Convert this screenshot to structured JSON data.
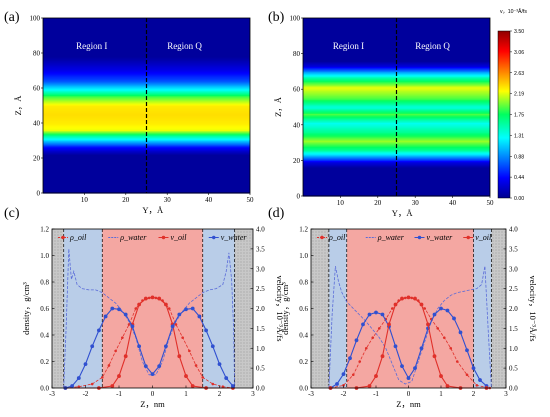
{
  "chart_data": [
    {
      "id": "a",
      "type": "heatmap",
      "panel_label": "(a)",
      "xlabel": "Y，Å",
      "ylabel": "Z，Å",
      "x_ticks": [
        "10",
        "20",
        "30",
        "40",
        "50"
      ],
      "y_ticks": [
        "0",
        "20",
        "40",
        "60",
        "80",
        "100"
      ],
      "xlim": [
        0,
        50
      ],
      "ylim": [
        0,
        100
      ],
      "regions": [
        "Region I",
        "Region Q"
      ],
      "divider_x": 25,
      "profile": [
        {
          "z": 0,
          "v": 0.05
        },
        {
          "z": 22,
          "v": 0.05
        },
        {
          "z": 26,
          "v": 0.4
        },
        {
          "z": 30,
          "v": 1.1
        },
        {
          "z": 33,
          "v": 1.6
        },
        {
          "z": 36,
          "v": 2.2
        },
        {
          "z": 40,
          "v": 2.3
        },
        {
          "z": 45,
          "v": 2.35
        },
        {
          "z": 50,
          "v": 2.3
        },
        {
          "z": 55,
          "v": 1.9
        },
        {
          "z": 59,
          "v": 1.3
        },
        {
          "z": 64,
          "v": 0.7
        },
        {
          "z": 70,
          "v": 0.35
        },
        {
          "z": 76,
          "v": 0.12
        },
        {
          "z": 78,
          "v": 0.05
        },
        {
          "z": 100,
          "v": 0.05
        }
      ]
    },
    {
      "id": "b",
      "type": "heatmap",
      "panel_label": "(b)",
      "xlabel": "Y，Å",
      "ylabel": "Z，Å",
      "x_ticks": [
        "10",
        "20",
        "30",
        "40",
        "50"
      ],
      "y_ticks": [
        "0",
        "20",
        "40",
        "60",
        "80",
        "100"
      ],
      "xlim": [
        0,
        50
      ],
      "ylim": [
        0,
        100
      ],
      "regions": [
        "Region I",
        "Region Q"
      ],
      "divider_x": 25,
      "colorbar_title": "v，10⁻³Å/fs",
      "colorbar_ticks": [
        "0.00",
        "0.44",
        "0.88",
        "1.31",
        "1.75",
        "2.19",
        "2.63",
        "3.06",
        "3.50"
      ],
      "colorbar_range": [
        0,
        3.5
      ],
      "profile": [
        {
          "z": 0,
          "v": 0.05
        },
        {
          "z": 16,
          "v": 0.05
        },
        {
          "z": 19,
          "v": 0.3
        },
        {
          "z": 22,
          "v": 0.9
        },
        {
          "z": 26,
          "v": 1.6
        },
        {
          "z": 31,
          "v": 2.05
        },
        {
          "z": 36,
          "v": 1.6
        },
        {
          "z": 41,
          "v": 1.3
        },
        {
          "z": 46,
          "v": 1.9
        },
        {
          "z": 50,
          "v": 1.35
        },
        {
          "z": 55,
          "v": 1.9
        },
        {
          "z": 61,
          "v": 2.2
        },
        {
          "z": 66,
          "v": 1.6
        },
        {
          "z": 70,
          "v": 0.9
        },
        {
          "z": 73,
          "v": 0.3
        },
        {
          "z": 76,
          "v": 0.05
        },
        {
          "z": 100,
          "v": 0.05
        }
      ]
    },
    {
      "id": "c",
      "type": "line",
      "panel_label": "(c)",
      "xlabel": "Z，nm",
      "ylabel_left": "density，g/cm³",
      "ylabel_right": "velocity，10⁻³Å/fs",
      "x_ticks": [
        "-3",
        "-2",
        "-1",
        "0",
        "1",
        "2",
        "3"
      ],
      "y_ticks_left": [
        "0.0",
        "0.2",
        "0.4",
        "0.6",
        "0.8",
        "1.0",
        "1.2"
      ],
      "y_ticks_right": [
        "0.0",
        "0.5",
        "1.0",
        "1.5",
        "2.0",
        "2.5",
        "3.0",
        "3.5",
        "4.0"
      ],
      "xlim": [
        -3,
        3
      ],
      "ylim_left": [
        0,
        1.2
      ],
      "ylim_right": [
        0,
        4
      ],
      "wall_regions": [
        [
          -3,
          -2.65
        ],
        [
          2.45,
          3
        ]
      ],
      "water_regions": [
        [
          -2.65,
          -1.5
        ],
        [
          1.5,
          2.45
        ]
      ],
      "oil_region": [
        -1.5,
        1.5
      ],
      "dashed_lines": [
        -2.65,
        -1.5,
        1.5,
        2.45
      ],
      "legend": [
        "ρ_oil",
        "ρ_water",
        "v_oil",
        "v_water"
      ],
      "series": [
        {
          "name": "ρ_oil",
          "axis": "left",
          "color": "#e0302a",
          "style": "dash-marker",
          "x": [
            -2.6,
            -2.2,
            -1.8,
            -1.5,
            -1.3,
            -1.1,
            -0.9,
            -0.7,
            -0.5,
            -0.3,
            -0.1,
            0.1,
            0.3,
            0.5,
            0.7,
            0.9,
            1.1,
            1.3,
            1.5,
            1.8,
            2.1,
            2.4
          ],
          "y": [
            0,
            0.01,
            0.03,
            0.08,
            0.17,
            0.28,
            0.38,
            0.48,
            0.6,
            0.66,
            0.68,
            0.68,
            0.66,
            0.6,
            0.48,
            0.38,
            0.28,
            0.17,
            0.08,
            0.03,
            0.01,
            0
          ]
        },
        {
          "name": "ρ_water",
          "axis": "left",
          "color": "#5a6bd8",
          "style": "dash",
          "x": [
            -2.65,
            -2.58,
            -2.5,
            -2.42,
            -2.35,
            -2.25,
            -2.1,
            -1.9,
            -1.7,
            -1.5,
            -1.3,
            -1.1,
            -0.9,
            -0.7,
            -0.5,
            -0.3,
            -0.1,
            0.1,
            0.3,
            0.5,
            0.7,
            0.9,
            1.1,
            1.3,
            1.5,
            1.7,
            1.9,
            2.1,
            2.2,
            2.28,
            2.36,
            2.42,
            2.45
          ],
          "y": [
            0,
            0.45,
            1.05,
            0.82,
            0.88,
            0.78,
            0.75,
            0.74,
            0.74,
            0.72,
            0.68,
            0.64,
            0.58,
            0.5,
            0.38,
            0.2,
            0.1,
            0.1,
            0.2,
            0.38,
            0.5,
            0.58,
            0.64,
            0.68,
            0.72,
            0.74,
            0.75,
            0.78,
            0.88,
            1.02,
            0.82,
            0.45,
            0
          ]
        },
        {
          "name": "v_oil",
          "axis": "right",
          "color": "#e0302a",
          "style": "line-marker",
          "x": [
            -2.6,
            -1.6,
            -1.2,
            -1.0,
            -0.8,
            -0.6,
            -0.4,
            -0.2,
            0,
            0.2,
            0.4,
            0.6,
            0.8,
            1.0,
            1.2,
            1.6,
            2.4
          ],
          "y": [
            0,
            0,
            0.05,
            0.3,
            0.8,
            1.6,
            2.1,
            2.25,
            2.28,
            2.25,
            2.1,
            1.6,
            0.8,
            0.3,
            0.05,
            0,
            0
          ]
        },
        {
          "name": "v_water",
          "axis": "right",
          "color": "#3050d0",
          "style": "line-marker",
          "x": [
            -2.6,
            -2.4,
            -2.2,
            -2.0,
            -1.8,
            -1.6,
            -1.4,
            -1.2,
            -1.0,
            -0.8,
            -0.6,
            -0.4,
            -0.2,
            0,
            0.2,
            0.4,
            0.6,
            0.8,
            1.0,
            1.2,
            1.4,
            1.6,
            1.8,
            2.0,
            2.2,
            2.4
          ],
          "y": [
            0,
            0.05,
            0.25,
            0.6,
            1.05,
            1.45,
            1.8,
            2.0,
            1.98,
            1.85,
            1.55,
            1.05,
            0.55,
            0.35,
            0.55,
            1.05,
            1.55,
            1.85,
            1.98,
            2.0,
            1.8,
            1.45,
            1.05,
            0.6,
            0.25,
            0.05
          ]
        }
      ]
    },
    {
      "id": "d",
      "type": "line",
      "panel_label": "(d)",
      "xlabel": "Z，nm",
      "ylabel_left": "density，g/cm³",
      "ylabel_right": "velocity，10⁻³Å/fs",
      "x_ticks": [
        "-3",
        "-2",
        "-1",
        "0",
        "1",
        "2",
        "3"
      ],
      "y_ticks_left": [
        "0.0",
        "0.2",
        "0.4",
        "0.6",
        "0.8",
        "1.0",
        "1.2"
      ],
      "y_ticks_right": [
        "0.0",
        "0.5",
        "1.0",
        "1.5",
        "2.0",
        "2.5",
        "3.0",
        "3.5",
        "4.0"
      ],
      "xlim": [
        -3,
        3
      ],
      "ylim_left": [
        0,
        1.2
      ],
      "ylim_right": [
        0,
        4
      ],
      "wall_regions": [
        [
          -3,
          -2.45
        ],
        [
          2.55,
          3
        ]
      ],
      "water_regions": [
        [
          -2.45,
          -1.9
        ],
        [
          2.0,
          2.55
        ]
      ],
      "oil_region": [
        -1.9,
        2.0
      ],
      "dashed_lines": [
        -2.45,
        -1.9,
        2.0,
        2.55
      ],
      "legend": [
        "ρ_oil",
        "ρ_water",
        "v_water",
        "v_oil"
      ],
      "series": [
        {
          "name": "ρ_oil",
          "axis": "left",
          "color": "#e0302a",
          "style": "dash-marker",
          "x": [
            -2.4,
            -2.0,
            -1.7,
            -1.5,
            -1.3,
            -1.1,
            -0.9,
            -0.7,
            -0.5,
            -0.3,
            -0.1,
            0.1,
            0.3,
            0.5,
            0.7,
            0.9,
            1.1,
            1.3,
            1.5,
            1.8,
            2.1,
            2.5
          ],
          "y": [
            0,
            0.02,
            0.1,
            0.2,
            0.3,
            0.38,
            0.45,
            0.52,
            0.6,
            0.66,
            0.68,
            0.68,
            0.66,
            0.6,
            0.52,
            0.45,
            0.38,
            0.3,
            0.2,
            0.1,
            0.02,
            0
          ]
        },
        {
          "name": "ρ_water",
          "axis": "left",
          "color": "#5a6bd8",
          "style": "dash",
          "x": [
            -2.45,
            -2.35,
            -2.25,
            -2.15,
            -2.05,
            -1.9,
            -1.7,
            -1.5,
            -1.3,
            -1.1,
            -0.9,
            -0.7,
            -0.5,
            -0.3,
            -0.1,
            0.1,
            0.3,
            0.5,
            0.7,
            0.9,
            1.1,
            1.3,
            1.5,
            1.7,
            1.9,
            2.1,
            2.25,
            2.35,
            2.45,
            2.55
          ],
          "y": [
            0,
            0.55,
            0.92,
            0.8,
            0.72,
            0.65,
            0.6,
            0.55,
            0.5,
            0.44,
            0.38,
            0.3,
            0.18,
            0.06,
            0.03,
            0.05,
            0.2,
            0.35,
            0.5,
            0.6,
            0.66,
            0.7,
            0.72,
            0.73,
            0.74,
            0.75,
            0.78,
            0.92,
            0.45,
            0
          ]
        },
        {
          "name": "v_water",
          "axis": "right",
          "color": "#3050d0",
          "style": "line-marker",
          "x": [
            -2.4,
            -2.2,
            -2.0,
            -1.8,
            -1.6,
            -1.4,
            -1.2,
            -1.0,
            -0.8,
            -0.6,
            -0.4,
            -0.2,
            0,
            0.2,
            0.4,
            0.6,
            0.8,
            1.0,
            1.2,
            1.4,
            1.6,
            1.8,
            2.0,
            2.2,
            2.4
          ],
          "y": [
            0,
            0.1,
            0.35,
            0.75,
            1.2,
            1.6,
            1.85,
            1.9,
            1.85,
            1.55,
            1.05,
            0.55,
            0.25,
            0.5,
            1.0,
            1.5,
            1.85,
            2.0,
            1.95,
            1.75,
            1.4,
            0.95,
            0.5,
            0.2,
            0.05
          ]
        },
        {
          "name": "v_oil",
          "axis": "right",
          "color": "#e0302a",
          "style": "line-marker",
          "x": [
            -2.4,
            -1.6,
            -1.2,
            -1.0,
            -0.8,
            -0.6,
            -0.4,
            -0.2,
            0,
            0.2,
            0.4,
            0.6,
            0.8,
            1.0,
            1.2,
            1.6,
            2.4
          ],
          "y": [
            0,
            0,
            0.05,
            0.3,
            0.8,
            1.6,
            2.1,
            2.25,
            2.28,
            2.25,
            2.1,
            1.6,
            0.8,
            0.3,
            0.05,
            0,
            0
          ]
        }
      ]
    }
  ]
}
